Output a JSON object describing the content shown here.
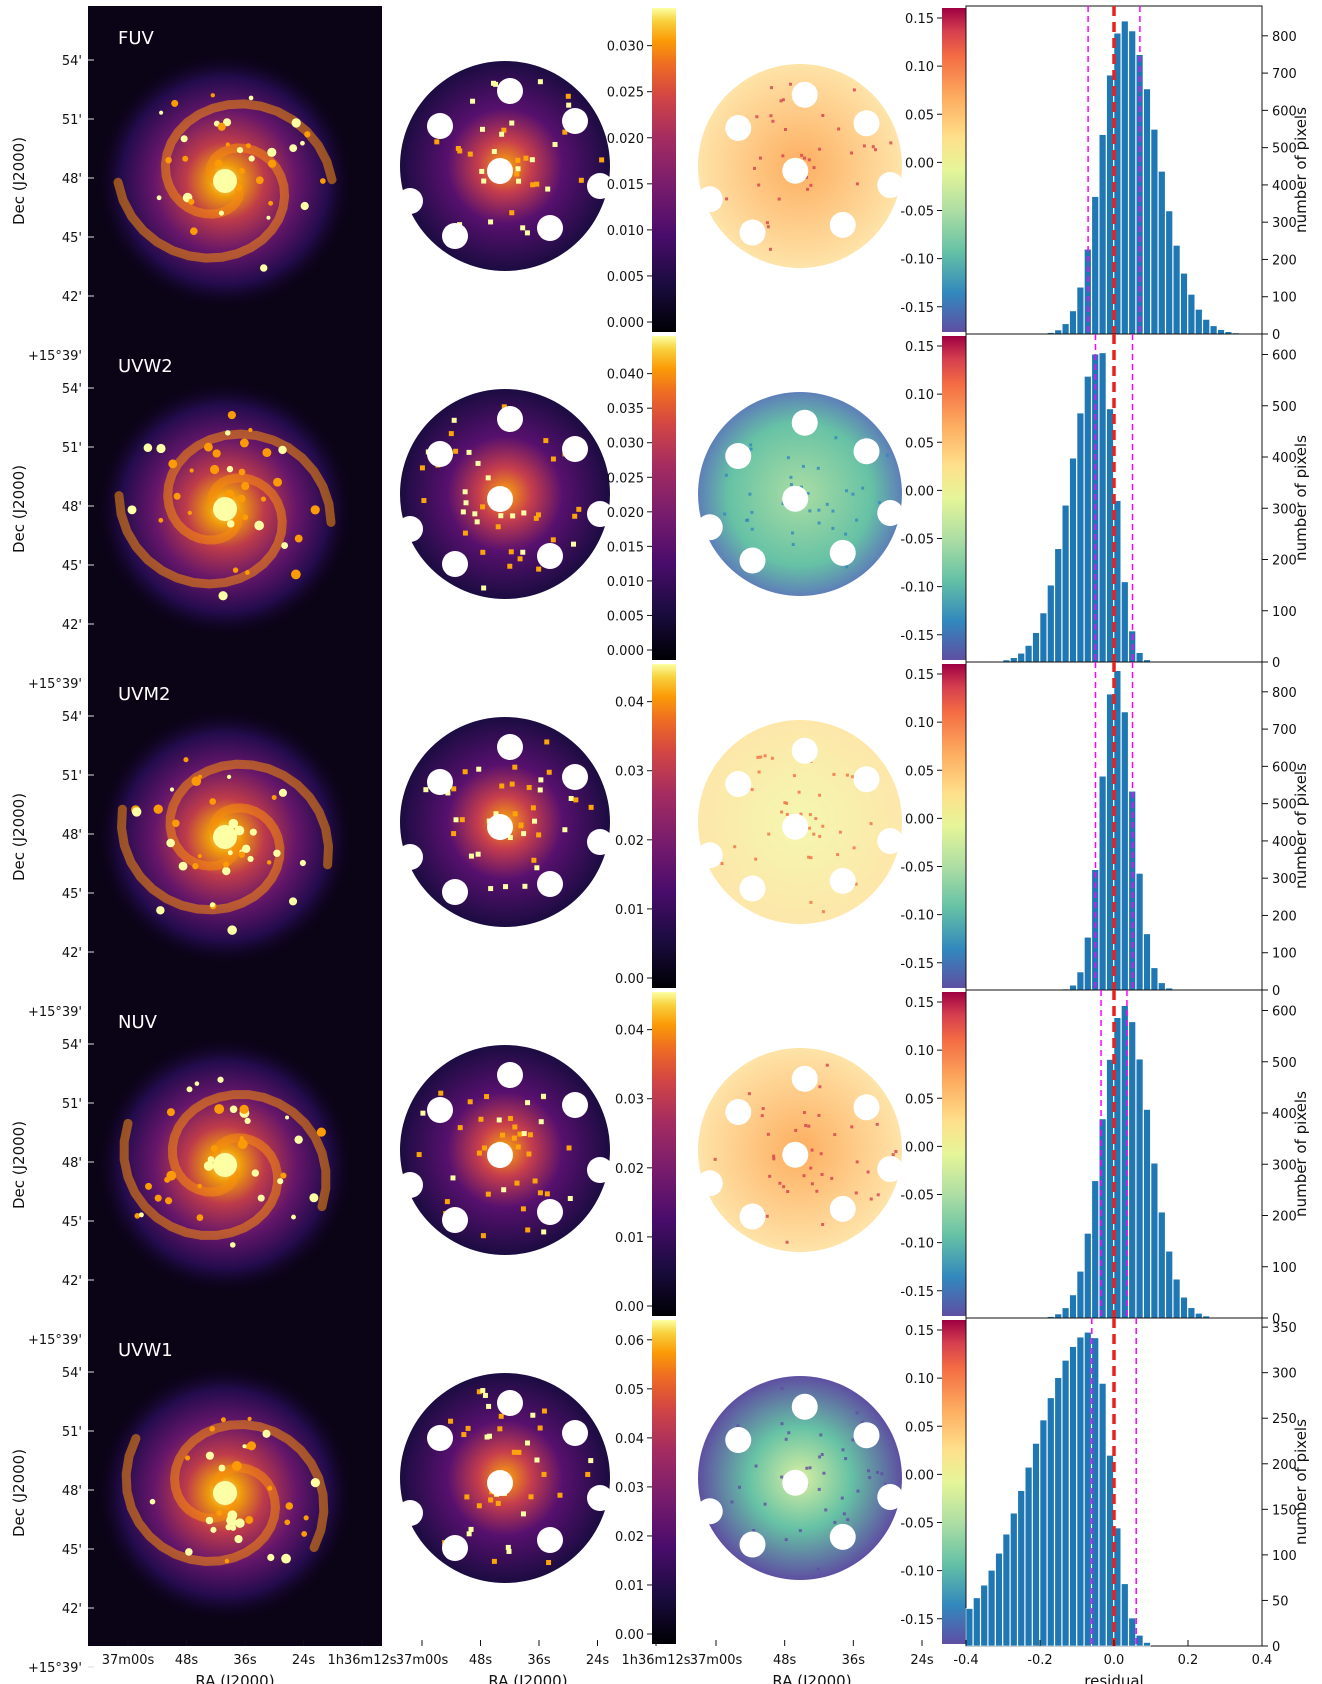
{
  "chart_data": {
    "type": "multi-panel figure",
    "rows": [
      {
        "band": "FUV",
        "colorbar": {
          "ticks": [
            "0.000",
            "0.005",
            "0.010",
            "0.015",
            "0.020",
            "0.025",
            "0.030"
          ],
          "max": 0.033
        },
        "histogram": {
          "y_ticks": [
            "0",
            "100",
            "200",
            "300",
            "400",
            "500",
            "600",
            "700",
            "800"
          ],
          "ymax": 880,
          "mean": 0.0,
          "sigma": 0.07,
          "counts_peak": 840,
          "skew_left": 0.06,
          "skew_right": 0.09,
          "shift": 0.045
        }
      },
      {
        "band": "UVW2",
        "colorbar": {
          "ticks": [
            "0.000",
            "0.005",
            "0.010",
            "0.015",
            "0.020",
            "0.025",
            "0.030",
            "0.035",
            "0.040"
          ],
          "max": 0.044
        },
        "histogram": {
          "y_ticks": [
            "0",
            "100",
            "200",
            "300",
            "400",
            "500",
            "600"
          ],
          "ymax": 640,
          "mean": 0.0,
          "sigma": 0.05,
          "counts_peak": 610,
          "skew_left": 0.08,
          "skew_right": 0.04,
          "shift": -0.06
        }
      },
      {
        "band": "UVM2",
        "colorbar": {
          "ticks": [
            "0.00",
            "0.01",
            "0.02",
            "0.03",
            "0.04"
          ],
          "max": 0.044
        },
        "histogram": {
          "y_ticks": [
            "0",
            "100",
            "200",
            "300",
            "400",
            "500",
            "600",
            "700",
            "800"
          ],
          "ymax": 880,
          "mean": 0.0,
          "sigma": 0.05,
          "counts_peak": 860,
          "skew_left": 0.04,
          "skew_right": 0.045,
          "shift": 0.01
        }
      },
      {
        "band": "NUV",
        "colorbar": {
          "ticks": [
            "0.00",
            "0.01",
            "0.02",
            "0.03",
            "0.04"
          ],
          "max": 0.044
        },
        "histogram": {
          "y_ticks": [
            "0",
            "100",
            "200",
            "300",
            "400",
            "500",
            "600"
          ],
          "ymax": 640,
          "mean": 0.0,
          "sigma": 0.035,
          "counts_peak": 610,
          "skew_left": 0.06,
          "skew_right": 0.07,
          "shift": 0.045
        }
      },
      {
        "band": "UVW1",
        "colorbar": {
          "ticks": [
            "0.00",
            "0.01",
            "0.02",
            "0.03",
            "0.04",
            "0.05",
            "0.06"
          ],
          "max": 0.062
        },
        "histogram": {
          "y_ticks": [
            "0",
            "50",
            "100",
            "150",
            "200",
            "250",
            "300",
            "350"
          ],
          "ymax": 360,
          "mean": 0.0,
          "sigma": 0.06,
          "counts_peak": 345,
          "skew_left": 0.16,
          "skew_right": 0.05,
          "shift": -0.1
        }
      }
    ],
    "dec_ticks": [
      "54'",
      "51'",
      "48'",
      "45'",
      "42'",
      "+15°39'"
    ],
    "ra_ticks_col1": [
      "37m00s",
      "48s",
      "36s",
      "24s",
      "1h36m12s"
    ],
    "ra_ticks_col2": [
      "37m00s",
      "48s",
      "36s",
      "24s",
      "1h36m12s"
    ],
    "ra_ticks_col3": [
      "37m00s",
      "48s",
      "36s",
      "24s"
    ],
    "residual_cbar_ticks": [
      "0.15",
      "0.10",
      "0.05",
      "0.00",
      "-0.05",
      "-0.10",
      "-0.15"
    ],
    "residual_x_ticks": [
      "-0.4",
      "-0.2",
      "0.0",
      "0.2",
      "0.4"
    ],
    "xlim_residual": [
      -0.4,
      0.4
    ],
    "dec_label": "Dec (J2000)",
    "ra_label": "RA (J2000)",
    "residual_xlabel": "residual",
    "hist_ylabel": "number of pixels",
    "colors": {
      "bar": "#1f77b4",
      "mean_line": "#e8231f",
      "sigma_line": "#ff00ff",
      "sky": "#0b0316"
    }
  }
}
